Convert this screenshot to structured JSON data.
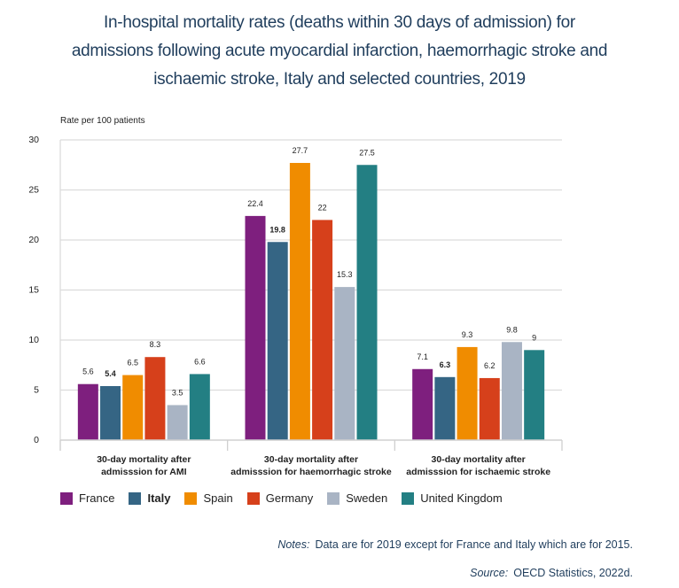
{
  "chart_data": {
    "type": "bar",
    "title_lines": [
      "In-hospital mortality rates (deaths within 30 days of admission) for",
      "admissions following acute myocardial infarction, haemorrhagic stroke and",
      "ischaemic stroke, Italy and selected countries, 2019"
    ],
    "ylabel": "Rate per 100 patients",
    "xlabel": "",
    "ylim": [
      0,
      30
    ],
    "yticks": [
      0,
      5,
      10,
      15,
      20,
      25,
      30
    ],
    "grid": true,
    "legend_position": "bottom",
    "categories": [
      [
        "30-day mortality after",
        "admisssion for AMI"
      ],
      [
        "30-day mortality after",
        "admisssion for haemorrhagic stroke"
      ],
      [
        "30-day mortality after",
        "admisssion for ischaemic stroke"
      ]
    ],
    "series": [
      {
        "name": "France",
        "color": "#7e1f7e",
        "bold": false,
        "values": [
          5.6,
          22.4,
          7.1
        ],
        "labels": [
          "5.6",
          "22.4",
          "7.1"
        ]
      },
      {
        "name": "Italy",
        "color": "#356584",
        "bold": true,
        "values": [
          5.4,
          19.8,
          6.3
        ],
        "labels": [
          "5.4",
          "19.8",
          "6.3"
        ]
      },
      {
        "name": "Spain",
        "color": "#f08c00",
        "bold": false,
        "values": [
          6.5,
          27.7,
          9.3
        ],
        "labels": [
          "6.5",
          "27.7",
          "9.3"
        ]
      },
      {
        "name": "Germany",
        "color": "#d6401b",
        "bold": false,
        "values": [
          8.3,
          22,
          6.2
        ],
        "labels": [
          "8.3",
          "22",
          "6.2"
        ]
      },
      {
        "name": "Sweden",
        "color": "#a9b4c4",
        "bold": false,
        "values": [
          3.5,
          15.3,
          9.8
        ],
        "labels": [
          "3.5",
          "15.3",
          "9.8"
        ]
      },
      {
        "name": "United Kingdom",
        "color": "#237f83",
        "bold": false,
        "values": [
          6.6,
          27.5,
          9
        ],
        "labels": [
          "6.6",
          "27.5",
          "9"
        ]
      }
    ]
  },
  "footer": {
    "notes_label": "Notes:",
    "notes_text": "Data are for 2019 except for France and Italy which are for 2015.",
    "source_label": "Source:",
    "source_text": "OECD Statistics, 2022d."
  }
}
